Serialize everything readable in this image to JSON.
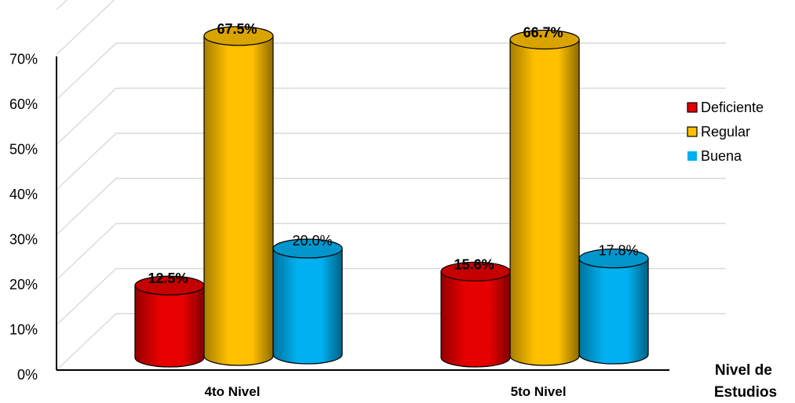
{
  "chart_data": {
    "type": "bar",
    "categories": [
      "4to Nivel",
      "5to Nivel"
    ],
    "series": [
      {
        "name": "Deficiente",
        "values": [
          12.5,
          15.6
        ],
        "labels": [
          "12.5%",
          "15.6%"
        ],
        "color": "#e60000",
        "label_bold": true
      },
      {
        "name": "Regular",
        "values": [
          67.5,
          66.7
        ],
        "labels": [
          "67.5%",
          "66.7%"
        ],
        "color": "#ffc000",
        "label_bold": true
      },
      {
        "name": "Buena",
        "values": [
          20.0,
          17.8
        ],
        "labels": [
          "20.0%",
          "17.8%"
        ],
        "color": "#00b0f0",
        "label_bold": false
      }
    ],
    "y_ticks": [
      "0%",
      "10%",
      "20%",
      "30%",
      "40%",
      "50%",
      "60%",
      "70%"
    ],
    "ylim": [
      0,
      70
    ],
    "xlabel": "Nivel de Estudios",
    "xlabel_lines": [
      "Nivel de",
      "Estudios"
    ],
    "ylabel": "",
    "title": "",
    "grid": true,
    "legend_position": "right"
  }
}
